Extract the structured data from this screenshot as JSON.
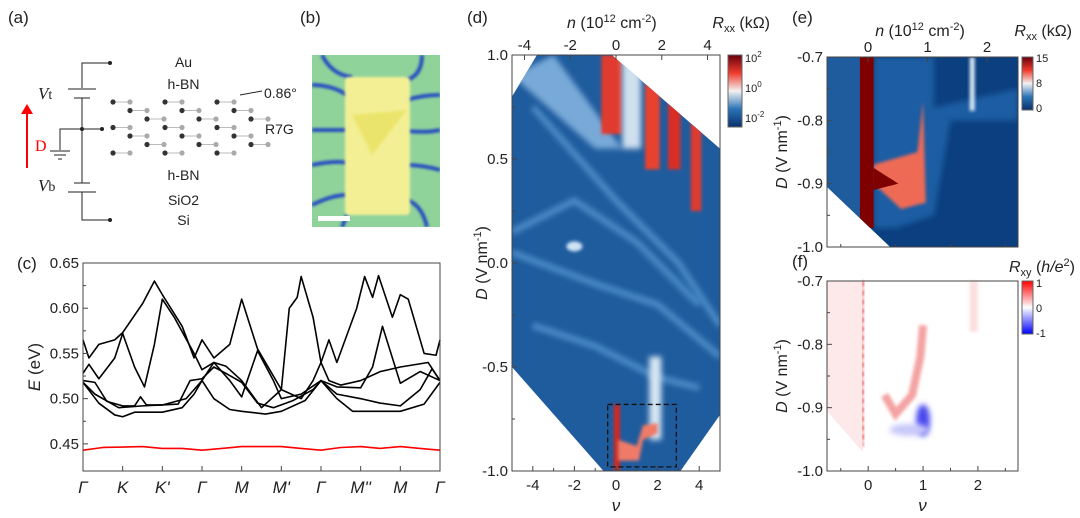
{
  "panels": {
    "a": {
      "label": "(a)",
      "layers": [
        {
          "name": "Au",
          "color": "#f7d57e"
        },
        {
          "name": "h-BN",
          "color": "#a1d3f0"
        },
        {
          "name": "h-BN",
          "color": "#a1d3f0"
        },
        {
          "name": "SiO2",
          "color": "#cdb3dd"
        },
        {
          "name": "Si",
          "color": "#c4c4c4"
        }
      ],
      "twist_angle": "0.86°",
      "sample_label": "R7G",
      "top_gate": "V",
      "top_gate_sub": "t",
      "bottom_gate": "V",
      "bottom_gate_sub": "b",
      "field_label": "D",
      "field_color": "#ff0000"
    },
    "b": {
      "label": "(b)"
    },
    "c": {
      "label": "(c)"
    },
    "d": {
      "label": "(d)"
    },
    "e": {
      "label": "(e)"
    },
    "f": {
      "label": "(f)"
    }
  },
  "chart_data": [
    {
      "panel": "c",
      "type": "line",
      "ylabel": "E (eV)",
      "ylabel_italic": "E",
      "ylabel_unit": " (eV)",
      "ylim": [
        0.42,
        0.65
      ],
      "yticks": [
        "0.45",
        "0.50",
        "0.55",
        "0.60",
        "0.65"
      ],
      "yticks_values": [
        0.45,
        0.5,
        0.55,
        0.6,
        0.65
      ],
      "xtick_labels": [
        "Γ",
        "K",
        "K'",
        "Γ",
        "M",
        "M'",
        "Γ",
        "M''",
        "M",
        "Γ"
      ],
      "series": [
        {
          "color": "#000000",
          "points": [
            [
              0,
              0.518
            ],
            [
              0.4,
              0.495
            ],
            [
              0.8,
              0.482
            ],
            [
              1,
              0.48
            ],
            [
              1.3,
              0.485
            ],
            [
              2,
              0.485
            ],
            [
              2.5,
              0.49
            ],
            [
              2.8,
              0.505
            ],
            [
              3,
              0.52
            ],
            [
              3.3,
              0.5
            ],
            [
              3.7,
              0.488
            ],
            [
              4,
              0.486
            ],
            [
              4.6,
              0.483
            ],
            [
              5,
              0.486
            ],
            [
              5.6,
              0.498
            ],
            [
              6,
              0.52
            ],
            [
              6.4,
              0.5
            ],
            [
              6.8,
              0.486
            ],
            [
              7.5,
              0.486
            ],
            [
              8,
              0.486
            ],
            [
              8.6,
              0.494
            ],
            [
              9,
              0.518
            ]
          ]
        },
        {
          "color": "#000000",
          "points": [
            [
              0,
              0.52
            ],
            [
              0.3,
              0.518
            ],
            [
              0.6,
              0.497
            ],
            [
              1,
              0.492
            ],
            [
              1.3,
              0.492
            ],
            [
              1.45,
              0.502
            ],
            [
              1.6,
              0.493
            ],
            [
              2,
              0.493
            ],
            [
              2.4,
              0.494
            ],
            [
              2.7,
              0.52
            ],
            [
              3,
              0.522
            ],
            [
              3.3,
              0.535
            ],
            [
              3.6,
              0.528
            ],
            [
              4,
              0.518
            ],
            [
              4.4,
              0.495
            ],
            [
              4.8,
              0.49
            ],
            [
              5.3,
              0.498
            ],
            [
              5.8,
              0.51
            ],
            [
              6,
              0.52
            ],
            [
              6.4,
              0.505
            ],
            [
              7,
              0.5
            ],
            [
              7.5,
              0.495
            ],
            [
              8,
              0.492
            ],
            [
              8.5,
              0.51
            ],
            [
              8.8,
              0.533
            ],
            [
              9,
              0.52
            ]
          ]
        },
        {
          "color": "#000000",
          "points": [
            [
              0,
              0.528
            ],
            [
              0.15,
              0.538
            ],
            [
              0.4,
              0.522
            ],
            [
              0.8,
              0.545
            ],
            [
              1,
              0.572
            ],
            [
              1.3,
              0.535
            ],
            [
              1.55,
              0.513
            ],
            [
              1.8,
              0.56
            ],
            [
              2,
              0.61
            ],
            [
              2.3,
              0.59
            ],
            [
              2.8,
              0.55
            ],
            [
              3,
              0.532
            ],
            [
              3.3,
              0.54
            ],
            [
              3.7,
              0.52
            ],
            [
              4,
              0.502
            ],
            [
              4.4,
              0.553
            ],
            [
              4.8,
              0.52
            ],
            [
              5,
              0.5
            ],
            [
              5.5,
              0.505
            ],
            [
              6,
              0.52
            ],
            [
              6.4,
              0.513
            ],
            [
              7,
              0.512
            ],
            [
              7.3,
              0.535
            ],
            [
              7.55,
              0.58
            ],
            [
              8,
              0.517
            ],
            [
              8.5,
              0.53
            ],
            [
              9,
              0.52
            ]
          ]
        },
        {
          "color": "#000000",
          "points": [
            [
              0,
              0.565
            ],
            [
              0.15,
              0.545
            ],
            [
              0.4,
              0.56
            ],
            [
              0.8,
              0.565
            ],
            [
              1,
              0.573
            ],
            [
              1.5,
              0.605
            ],
            [
              1.8,
              0.63
            ],
            [
              2,
              0.615
            ],
            [
              2.5,
              0.58
            ],
            [
              2.8,
              0.545
            ],
            [
              3,
              0.565
            ],
            [
              3.3,
              0.545
            ],
            [
              3.7,
              0.56
            ],
            [
              4,
              0.61
            ],
            [
              4.4,
              0.555
            ],
            [
              5,
              0.51
            ],
            [
              5.5,
              0.5
            ],
            [
              5.8,
              0.52
            ],
            [
              6,
              0.54
            ],
            [
              6.2,
              0.565
            ],
            [
              6.4,
              0.54
            ],
            [
              6.9,
              0.6
            ],
            [
              7.1,
              0.635
            ],
            [
              7.3,
              0.612
            ],
            [
              7.45,
              0.636
            ],
            [
              7.8,
              0.59
            ],
            [
              8,
              0.615
            ],
            [
              8.2,
              0.61
            ],
            [
              8.6,
              0.55
            ],
            [
              8.9,
              0.548
            ],
            [
              9,
              0.565
            ]
          ]
        },
        {
          "color": "#000000",
          "points": [
            [
              0,
              0.518
            ],
            [
              0.3,
              0.505
            ],
            [
              0.9,
              0.49
            ],
            [
              1.5,
              0.492
            ],
            [
              2,
              0.493
            ],
            [
              2.6,
              0.5
            ],
            [
              3,
              0.52
            ],
            [
              3.3,
              0.54
            ],
            [
              3.6,
              0.536
            ],
            [
              4,
              0.52
            ],
            [
              4.5,
              0.49
            ],
            [
              5,
              0.51
            ],
            [
              5.2,
              0.6
            ],
            [
              5.4,
              0.612
            ],
            [
              5.5,
              0.635
            ],
            [
              5.8,
              0.59
            ],
            [
              6,
              0.54
            ],
            [
              6.2,
              0.52
            ],
            [
              6.5,
              0.515
            ],
            [
              7,
              0.52
            ],
            [
              7.5,
              0.53
            ],
            [
              8,
              0.535
            ],
            [
              8.7,
              0.54
            ],
            [
              9,
              0.52
            ]
          ]
        },
        {
          "color": "#ff0000",
          "points": [
            [
              0,
              0.443
            ],
            [
              0.5,
              0.446
            ],
            [
              1.5,
              0.447
            ],
            [
              2,
              0.445
            ],
            [
              2.5,
              0.445
            ],
            [
              3,
              0.443
            ],
            [
              3.5,
              0.445
            ],
            [
              4,
              0.447
            ],
            [
              4.5,
              0.447
            ],
            [
              5,
              0.447
            ],
            [
              5.5,
              0.445
            ],
            [
              6,
              0.443
            ],
            [
              6.5,
              0.446
            ],
            [
              7,
              0.447
            ],
            [
              7.5,
              0.445
            ],
            [
              8,
              0.447
            ],
            [
              8.5,
              0.445
            ],
            [
              9,
              0.443
            ]
          ]
        }
      ]
    },
    {
      "panel": "d",
      "type": "heatmap",
      "xlabel": "ν",
      "ylabel_italic": "D",
      "ylabel_unit": " (V nm",
      "ylabel_sup": "-1",
      "xlim": [
        -5,
        5
      ],
      "ylim": [
        -1.0,
        1.0
      ],
      "xticks": [
        "-4",
        "-2",
        "0",
        "2",
        "4"
      ],
      "xticks_values": [
        -4,
        -2,
        0,
        2,
        4
      ],
      "yticks": [
        "1.0",
        "0.5",
        "0.0",
        "-0.5",
        "-1.0"
      ],
      "yticks_values": [
        1.0,
        0.5,
        0.0,
        -0.5,
        -1.0
      ],
      "top_axis": {
        "label_italic": "n",
        "label": " (10",
        "label_sup": "12",
        "label_rest": " cm",
        "label_sup2": "-2",
        "label_end": ")",
        "ticks": [
          "-4",
          "-2",
          "0",
          "2",
          "4"
        ],
        "ticks_values": [
          -4,
          -2,
          0,
          2,
          4
        ]
      },
      "colorbar": {
        "title": "R",
        "title_sub": "xx",
        "title_unit": " (kΩ)",
        "scale": "log",
        "ticks": [
          "10",
          "10",
          "10"
        ],
        "ticks_sup": [
          "2",
          "0",
          "-2"
        ],
        "colors": [
          "#08306b",
          "#2b74b8",
          "#f2f2f2",
          "#ef3b2c",
          "#67000d"
        ]
      },
      "highlight_box": {
        "x": [
          -0.4,
          2.9
        ],
        "y": [
          -0.98,
          -0.68
        ],
        "style": "dashed"
      }
    },
    {
      "panel": "e",
      "type": "heatmap",
      "ylabel_italic": "D",
      "ylabel_unit": " (V nm",
      "ylabel_sup": "-1",
      "xlim": [
        -0.75,
        2.73
      ],
      "ylim": [
        -1.0,
        -0.7
      ],
      "yticks": [
        "-0.7",
        "-0.8",
        "-0.9",
        "-1.0"
      ],
      "yticks_values": [
        -0.7,
        -0.8,
        -0.9,
        -1.0
      ],
      "top_axis": {
        "label_italic": "n",
        "label": " (10",
        "label_sup": "12",
        "label_rest": " cm",
        "label_sup2": "-2",
        "label_end": ")",
        "ticks": [
          "0",
          "1",
          "2"
        ]
      },
      "colorbar": {
        "title": "R",
        "title_sub": "xx",
        "title_unit": " (kΩ)",
        "scale": "linear",
        "ticks": [
          "15",
          "8",
          "0"
        ],
        "colors": [
          "#08306b",
          "#2b74b8",
          "#f2f2f2",
          "#ef3b2c",
          "#67000d"
        ]
      }
    },
    {
      "panel": "f",
      "type": "heatmap",
      "xlabel": "ν",
      "ylabel_italic": "D",
      "ylabel_unit": " (V nm",
      "ylabel_sup": "-1",
      "xlim": [
        -0.75,
        2.73
      ],
      "ylim": [
        -1.0,
        -0.7
      ],
      "xticks": [
        "0",
        "1",
        "2"
      ],
      "xticks_values": [
        0,
        1,
        2
      ],
      "yticks": [
        "-0.7",
        "-0.8",
        "-0.9",
        "-1.0"
      ],
      "yticks_values": [
        -0.7,
        -0.8,
        -0.9,
        -1.0
      ],
      "colorbar": {
        "title": "R",
        "title_sub": "xy",
        "title_unit_open": " (",
        "title_unit_italic": "h/e",
        "title_unit_sup": "2",
        "title_unit_close": ")",
        "scale": "linear",
        "ticks": [
          "1",
          "0",
          "-1"
        ],
        "colors": [
          "#0000ff",
          "#ffffff",
          "#ff0000"
        ]
      }
    }
  ]
}
